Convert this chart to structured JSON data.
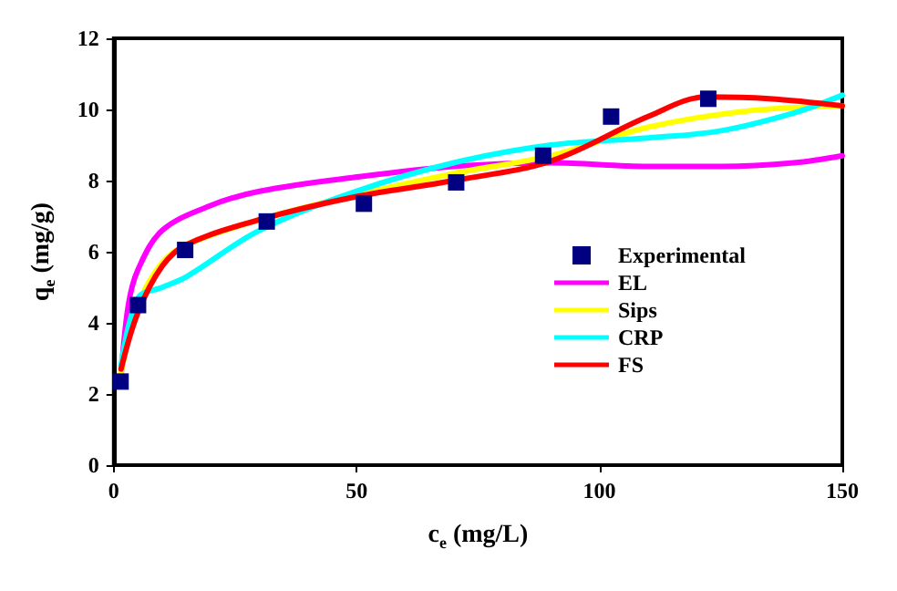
{
  "chart_data": {
    "type": "line",
    "xlabel": "c$_{e}$ (mg/L)",
    "ylabel": "q$_{e}$ (mg/g)",
    "xlim": [
      0,
      150
    ],
    "xticks": [
      0,
      50,
      100,
      150
    ],
    "ylim": [
      0,
      12
    ],
    "yticks": [
      0,
      2,
      4,
      6,
      8,
      10,
      12
    ],
    "grid": false,
    "legend": "bottom right",
    "marker": "none",
    "line_style": "solid",
    "series": [
      {
        "name": "Experimental",
        "type": "scatter",
        "marker": "square",
        "color": "#000080",
        "x": [
          1.4,
          5,
          14.7,
          31.5,
          51.5,
          70.5,
          88.4,
          102.4,
          122.4
        ],
        "values": [
          2.35,
          4.5,
          6.05,
          6.85,
          7.35,
          7.95,
          8.7,
          9.8,
          10.3
        ]
      },
      {
        "name": "EL",
        "color": "#ff00ff",
        "x": [
          1.5,
          3,
          5,
          10,
          20,
          30,
          50,
          70,
          90,
          110,
          125,
          140,
          150
        ],
        "values": [
          2.5,
          4.5,
          5.5,
          6.6,
          7.3,
          7.7,
          8.1,
          8.4,
          8.5,
          8.4,
          8.4,
          8.5,
          8.7
        ]
      },
      {
        "name": "Sips",
        "color": "#ffff00",
        "x": [
          1.5,
          5,
          10,
          15,
          30,
          50,
          70,
          90,
          110,
          130,
          150
        ],
        "values": [
          2.6,
          4.5,
          5.7,
          6.2,
          6.9,
          7.6,
          8.2,
          8.7,
          9.5,
          9.95,
          10.1
        ]
      },
      {
        "name": "CRP",
        "color": "#00ffff",
        "x": [
          1.5,
          5,
          10,
          15,
          30,
          50,
          70,
          90,
          110,
          125,
          140,
          150
        ],
        "values": [
          2.8,
          4.7,
          5.0,
          5.3,
          6.6,
          7.7,
          8.5,
          9.0,
          9.2,
          9.4,
          9.9,
          10.4
        ]
      },
      {
        "name": "FS",
        "color": "#ff0000",
        "x": [
          1.5,
          5,
          10,
          15,
          30,
          50,
          70,
          90,
          110,
          122,
          135,
          150
        ],
        "values": [
          2.7,
          4.3,
          5.6,
          6.2,
          6.9,
          7.55,
          8.0,
          8.55,
          9.8,
          10.35,
          10.3,
          10.1
        ]
      }
    ]
  }
}
